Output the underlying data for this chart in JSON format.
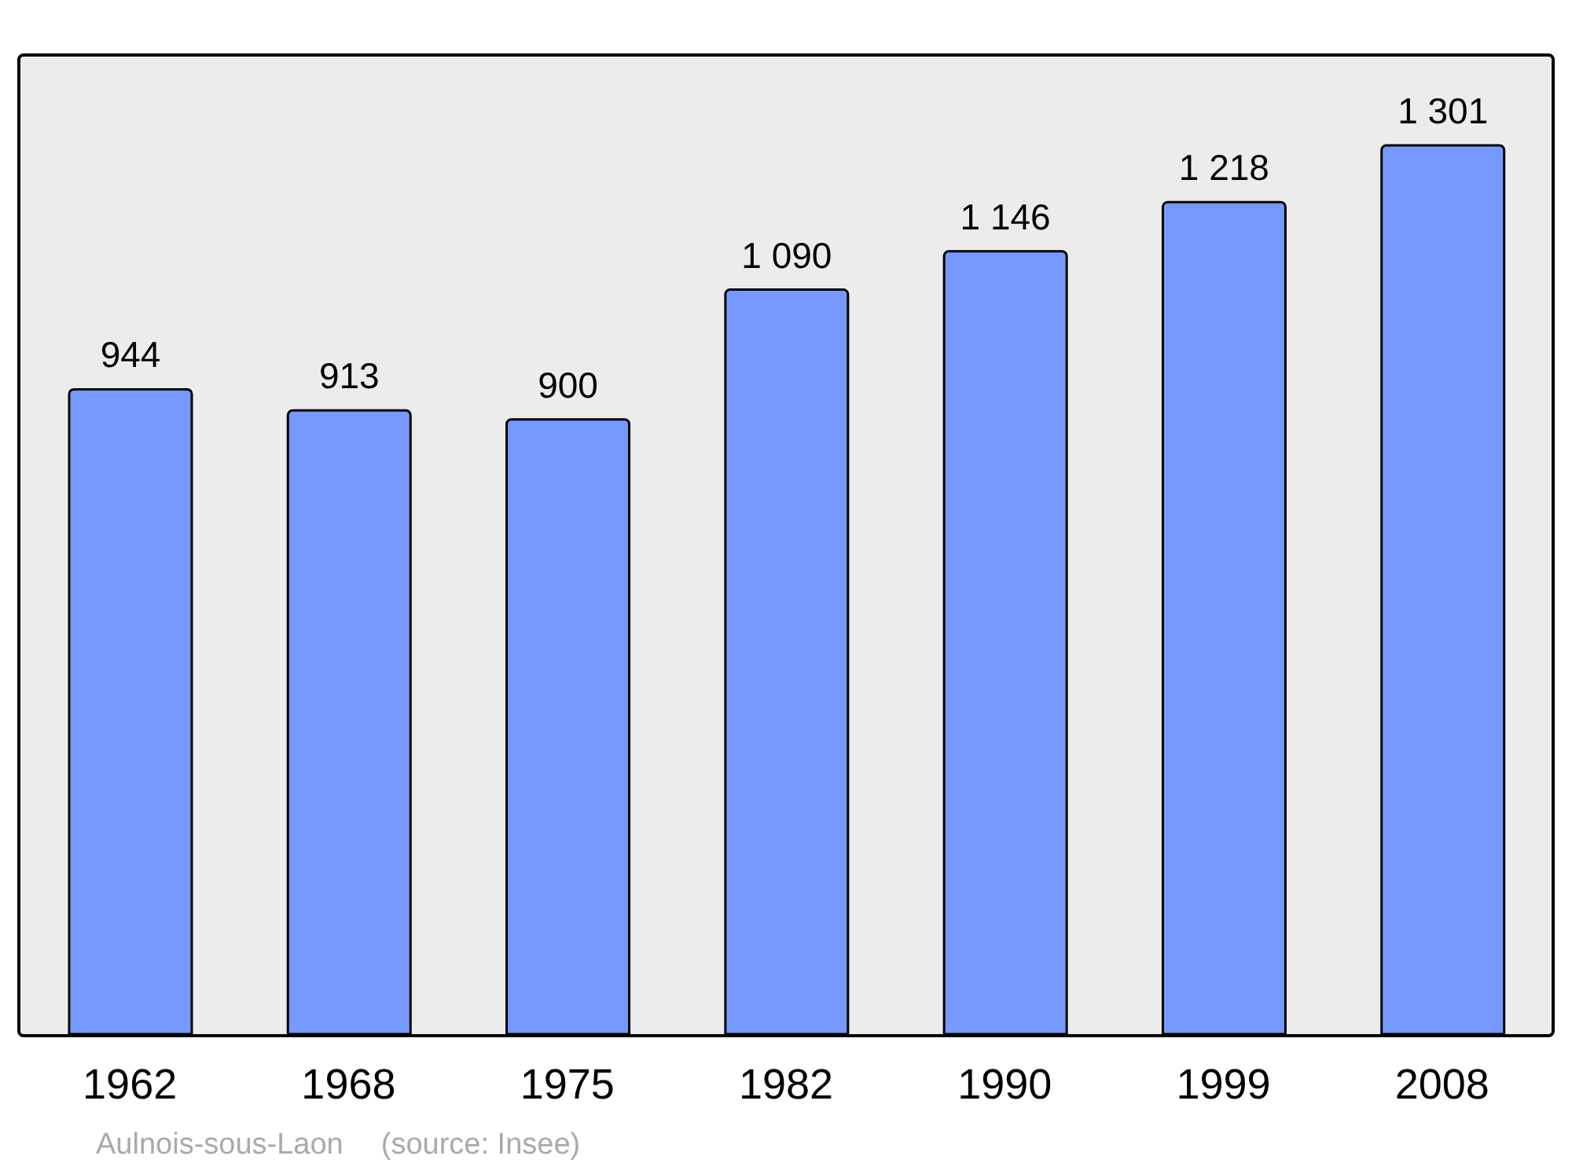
{
  "chart_data": {
    "type": "bar",
    "categories": [
      "1962",
      "1968",
      "1975",
      "1982",
      "1990",
      "1999",
      "2008"
    ],
    "values": [
      944,
      913,
      900,
      1090,
      1146,
      1218,
      1301
    ],
    "value_labels": [
      "944",
      "913",
      "900",
      "1 090",
      "1 146",
      "1 218",
      "1 301"
    ],
    "color": "#7599ff",
    "tick_labels": "x",
    "annotations": [
      "Aulnois-sous-Laon",
      "(source: Insee)"
    ]
  }
}
